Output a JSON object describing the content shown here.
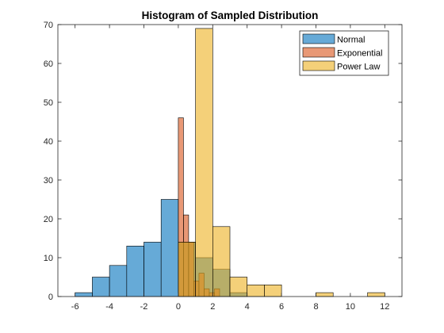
{
  "chart_data": {
    "type": "histogram",
    "title": "Histogram of Sampled Distribution",
    "xlabel": "",
    "ylabel": "",
    "xlim": [
      -7,
      13
    ],
    "ylim": [
      0,
      70
    ],
    "xticks": [
      -6,
      -4,
      -2,
      0,
      2,
      4,
      6,
      8,
      10,
      12
    ],
    "yticks": [
      0,
      10,
      20,
      30,
      40,
      50,
      60,
      70
    ],
    "grid": false,
    "legend_position": "top-right",
    "series": [
      {
        "name": "Normal",
        "color": "#0072BD",
        "bins": [
          {
            "x0": -6,
            "x1": -5,
            "count": 1
          },
          {
            "x0": -5,
            "x1": -4,
            "count": 5
          },
          {
            "x0": -4,
            "x1": -3,
            "count": 8
          },
          {
            "x0": -3,
            "x1": -2,
            "count": 13
          },
          {
            "x0": -2,
            "x1": -1,
            "count": 14
          },
          {
            "x0": -1,
            "x1": 0,
            "count": 25
          },
          {
            "x0": 0,
            "x1": 1,
            "count": 14
          },
          {
            "x0": 1,
            "x1": 2,
            "count": 10
          },
          {
            "x0": 2,
            "x1": 3,
            "count": 7
          },
          {
            "x0": 3,
            "x1": 4,
            "count": 1
          }
        ]
      },
      {
        "name": "Exponential",
        "color": "#D95319",
        "bins": [
          {
            "x0": 0,
            "x1": 0.3,
            "count": 46
          },
          {
            "x0": 0.3,
            "x1": 0.6,
            "count": 21
          },
          {
            "x0": 0.6,
            "x1": 0.9,
            "count": 14
          },
          {
            "x0": 0.9,
            "x1": 1.2,
            "count": 4
          },
          {
            "x0": 1.2,
            "x1": 1.5,
            "count": 6
          },
          {
            "x0": 1.5,
            "x1": 1.8,
            "count": 2
          },
          {
            "x0": 1.8,
            "x1": 2.1,
            "count": 1
          },
          {
            "x0": 2.1,
            "x1": 2.4,
            "count": 2
          }
        ]
      },
      {
        "name": "Power Law",
        "color": "#EDB120",
        "bins": [
          {
            "x0": 0,
            "x1": 1,
            "count": 14
          },
          {
            "x0": 1,
            "x1": 2,
            "count": 69
          },
          {
            "x0": 2,
            "x1": 3,
            "count": 18
          },
          {
            "x0": 3,
            "x1": 4,
            "count": 5
          },
          {
            "x0": 4,
            "x1": 5,
            "count": 3
          },
          {
            "x0": 5,
            "x1": 6,
            "count": 3
          },
          {
            "x0": 6,
            "x1": 7,
            "count": 0
          },
          {
            "x0": 7,
            "x1": 8,
            "count": 0
          },
          {
            "x0": 8,
            "x1": 9,
            "count": 1
          },
          {
            "x0": 9,
            "x1": 10,
            "count": 0
          },
          {
            "x0": 10,
            "x1": 11,
            "count": 0
          },
          {
            "x0": 11,
            "x1": 12,
            "count": 1
          }
        ]
      }
    ]
  }
}
